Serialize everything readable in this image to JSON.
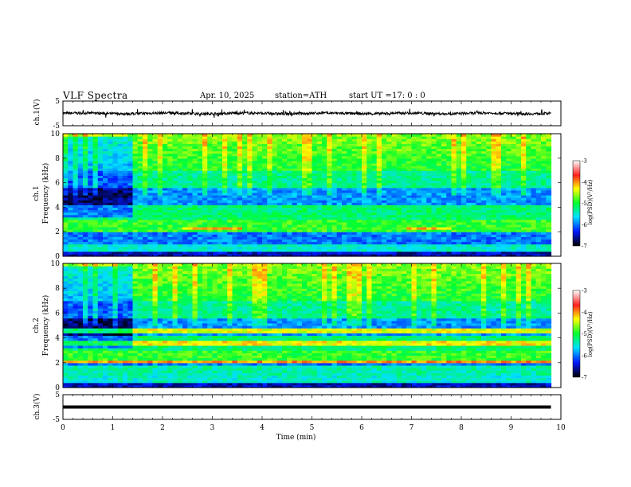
{
  "header": {
    "title": "VLF Spectra",
    "date": "Apr. 10, 2025",
    "station": "station=ATH",
    "start_label": "start UT =",
    "start_time": "17: 0 : 0"
  },
  "chart_data": [
    {
      "type": "line",
      "panel": "ch1-waveform",
      "ylabel": "ch.1(V)",
      "ylim": [
        -5,
        5
      ],
      "yticks": [
        "5",
        "-5"
      ],
      "x_range_min": [
        0,
        9.8
      ],
      "baseline_v": 0,
      "amplitude_v": 1
    },
    {
      "type": "heatmap",
      "panel": "ch1-spectrogram",
      "ylabel_line1": "ch.1",
      "ylabel_line2": "Frequency (kHz)",
      "ylim": [
        0,
        10
      ],
      "yticks": [
        "0",
        "2",
        "4",
        "6",
        "8",
        "10"
      ],
      "x_range_min": [
        0,
        9.8
      ],
      "colorbar": {
        "label": "log(PSD)(V²/Hz)",
        "range": [
          -7,
          -3
        ],
        "ticks": [
          "-3",
          "-4",
          "-5",
          "-6",
          "-7"
        ]
      }
    },
    {
      "type": "heatmap",
      "panel": "ch2-spectrogram",
      "ylabel_line1": "ch.2",
      "ylabel_line2": "Frequency (kHz)",
      "ylim": [
        0,
        10
      ],
      "yticks": [
        "0",
        "2",
        "4",
        "6",
        "8",
        "10"
      ],
      "x_range_min": [
        0,
        9.8
      ],
      "colorbar": {
        "label": "log(PSD)(V²/Hz)",
        "range": [
          -7,
          -3
        ],
        "ticks": [
          "-3",
          "-4",
          "-5",
          "-6",
          "-7"
        ]
      }
    },
    {
      "type": "line",
      "panel": "ch3-waveform",
      "ylabel": "ch.3(V)",
      "ylim": [
        -5,
        5
      ],
      "yticks": [
        "5",
        "-5"
      ],
      "x_range_min": [
        0,
        9.8
      ],
      "baseline_v": 0
    }
  ],
  "x_axis": {
    "label": "Time (min)",
    "range": [
      0,
      10
    ],
    "ticks": [
      "0",
      "1",
      "2",
      "3",
      "4",
      "5",
      "6",
      "7",
      "8",
      "9",
      "10"
    ]
  },
  "colors": {
    "colormap": [
      "#ffffff",
      "#ff0000",
      "#ffff00",
      "#00ff00",
      "#00ffff",
      "#0000ff",
      "#000000"
    ],
    "trace": "#000000"
  }
}
